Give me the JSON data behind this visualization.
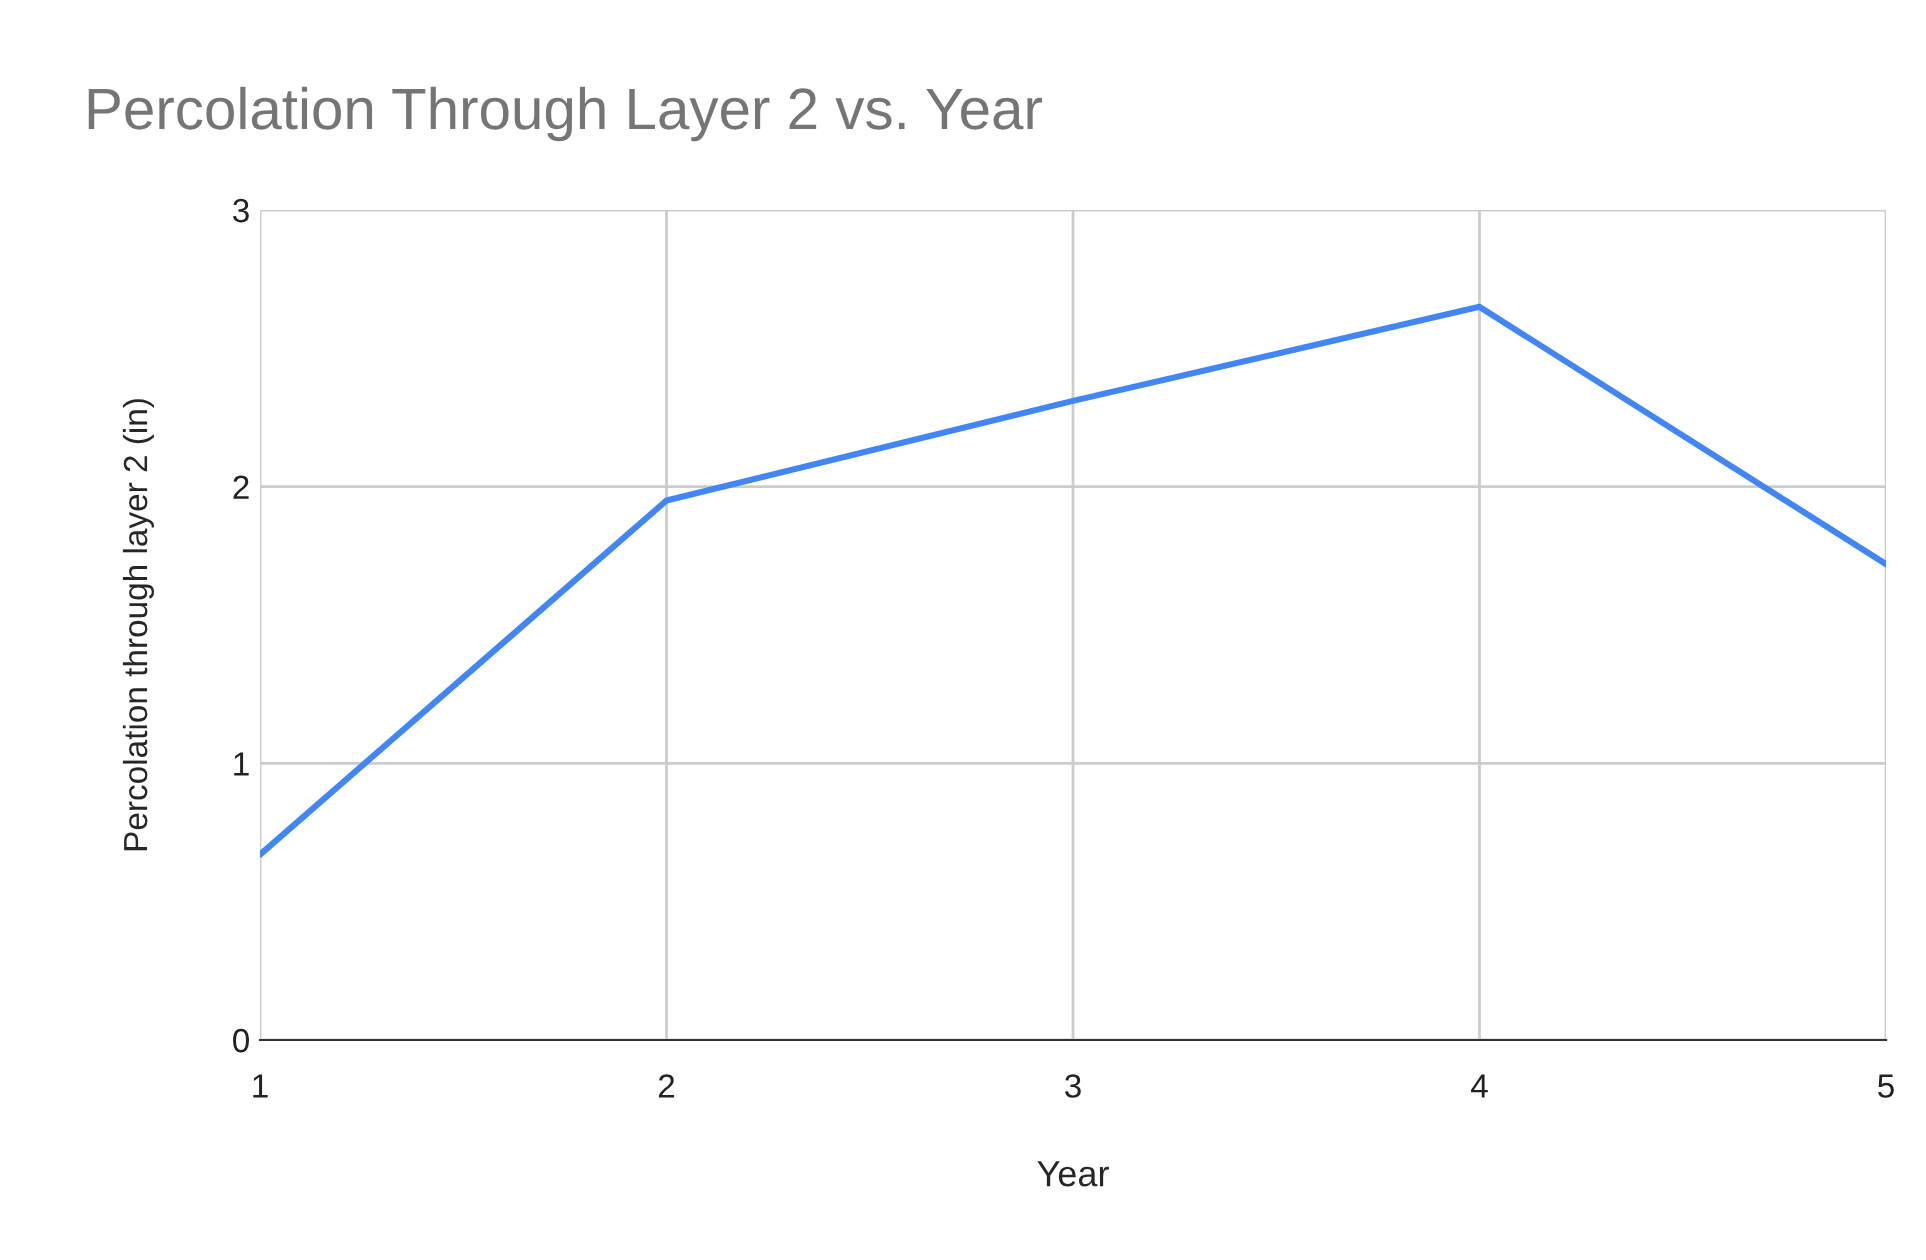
{
  "chart_data": {
    "type": "line",
    "title": "Percolation Through Layer 2 vs. Year",
    "xlabel": "Year",
    "ylabel": "Percolation through layer 2 (in)",
    "x": [
      1,
      2,
      3,
      4,
      5
    ],
    "series": [
      {
        "color": "#4285f4",
        "values": [
          0.67,
          1.95,
          2.31,
          2.65,
          1.72
        ]
      }
    ],
    "xlim": [
      1,
      5
    ],
    "xticks": [
      1,
      2,
      3,
      4,
      5
    ],
    "ylim": [
      0,
      3
    ],
    "yticks": [
      0,
      1,
      2,
      3
    ],
    "grid": true,
    "marker": "none",
    "line_style": "solid"
  }
}
